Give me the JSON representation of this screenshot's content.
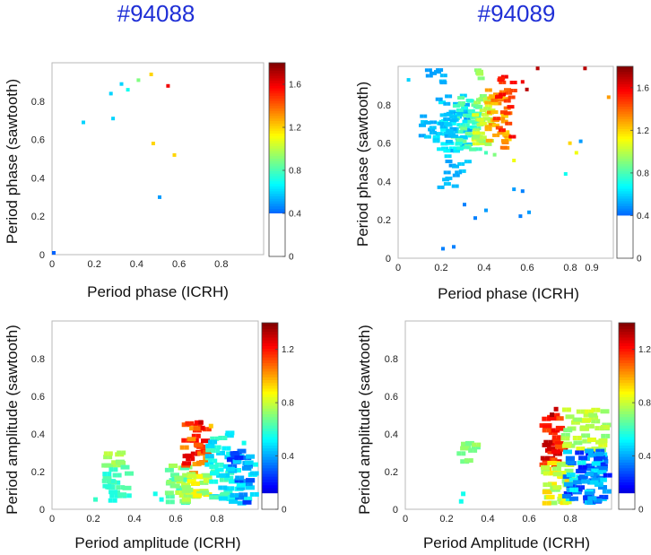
{
  "shots": [
    {
      "label": "#94088"
    },
    {
      "label": "#94089"
    }
  ],
  "chart_data": [
    {
      "type": "heatmap",
      "shot": "#94088",
      "xlabel": "Period phase (ICRH)",
      "ylabel": "Period phase (sawtooth)",
      "xlim": [
        0,
        1
      ],
      "ylim": [
        0,
        1
      ],
      "xticks": [
        "0",
        "0.2",
        "0.4",
        "0.6",
        "0.8"
      ],
      "yticks": [
        "0",
        "0.2",
        "0.4",
        "0.6",
        "0.8"
      ],
      "colorbar": {
        "range": [
          0,
          1.8
        ],
        "white_below": 0.4,
        "ticks": [
          "0",
          "0.4",
          "0.8",
          "1.2",
          "1.6"
        ]
      },
      "points": [
        [
          0.0,
          0.0,
          0.4
        ],
        [
          0.27,
          0.83,
          0.6
        ],
        [
          0.32,
          0.88,
          0.6
        ],
        [
          0.35,
          0.85,
          0.7
        ],
        [
          0.4,
          0.9,
          0.9
        ],
        [
          0.46,
          0.93,
          1.2
        ],
        [
          0.54,
          0.87,
          1.6
        ],
        [
          0.14,
          0.68,
          0.6
        ],
        [
          0.28,
          0.7,
          0.6
        ],
        [
          0.47,
          0.57,
          1.2
        ],
        [
          0.57,
          0.51,
          1.2
        ],
        [
          0.5,
          0.29,
          0.5
        ]
      ]
    },
    {
      "type": "heatmap",
      "shot": "#94089",
      "xlabel": "Period phase (ICRH)",
      "ylabel": "Period phase (sawtooth)",
      "xlim": [
        0,
        1
      ],
      "ylim": [
        0,
        1
      ],
      "xticks": [
        "0",
        "0.2",
        "0.4",
        "0.6",
        "0.8",
        "0.9"
      ],
      "yticks": [
        "0",
        "0.2",
        "0.4",
        "0.6",
        "0.8"
      ],
      "colorbar": {
        "range": [
          0,
          1.8
        ],
        "white_below": 0.4,
        "ticks": [
          "0",
          "0.4",
          "0.8",
          "1.2",
          "1.6"
        ]
      },
      "clusters": [
        {
          "x0": 0.16,
          "x1": 0.32,
          "y0": 0.52,
          "y1": 0.84,
          "c0": 0.5,
          "c1": 0.7,
          "n": 60
        },
        {
          "x0": 0.24,
          "x1": 0.36,
          "y0": 0.55,
          "y1": 0.84,
          "c0": 0.7,
          "c1": 0.9,
          "n": 45
        },
        {
          "x0": 0.34,
          "x1": 0.42,
          "y0": 0.58,
          "y1": 0.86,
          "c0": 0.9,
          "c1": 1.1,
          "n": 40
        },
        {
          "x0": 0.4,
          "x1": 0.5,
          "y0": 0.56,
          "y1": 0.88,
          "c0": 1.2,
          "c1": 1.4,
          "n": 40
        },
        {
          "x0": 0.44,
          "x1": 0.52,
          "y0": 0.62,
          "y1": 0.94,
          "c0": 1.4,
          "c1": 1.6,
          "n": 20
        },
        {
          "x0": 0.08,
          "x1": 0.26,
          "y0": 0.62,
          "y1": 0.74,
          "c0": 0.5,
          "c1": 0.6,
          "n": 25
        },
        {
          "x0": 0.18,
          "x1": 0.32,
          "y0": 0.36,
          "y1": 0.52,
          "c0": 0.5,
          "c1": 0.6,
          "n": 14
        },
        {
          "x0": 0.12,
          "x1": 0.2,
          "y0": 0.9,
          "y1": 0.98,
          "c0": 0.5,
          "c1": 0.6,
          "n": 8
        },
        {
          "x0": 0.34,
          "x1": 0.38,
          "y0": 0.92,
          "y1": 0.98,
          "c0": 0.9,
          "c1": 1.0,
          "n": 5
        }
      ],
      "points": [
        [
          0.04,
          0.92,
          0.6
        ],
        [
          0.4,
          0.24,
          0.5
        ],
        [
          0.35,
          0.2,
          0.45
        ],
        [
          0.56,
          0.21,
          0.45
        ],
        [
          0.53,
          0.35,
          0.5
        ],
        [
          0.25,
          0.05,
          0.45
        ],
        [
          0.2,
          0.04,
          0.45
        ],
        [
          0.3,
          0.27,
          0.45
        ],
        [
          0.6,
          0.23,
          0.5
        ],
        [
          0.57,
          0.34,
          0.45
        ],
        [
          0.64,
          0.98,
          1.7
        ],
        [
          0.86,
          0.98,
          1.7
        ],
        [
          0.59,
          0.87,
          1.7
        ],
        [
          0.57,
          0.91,
          1.6
        ],
        [
          0.97,
          0.83,
          1.3
        ],
        [
          0.82,
          0.54,
          1.1
        ],
        [
          0.79,
          0.59,
          1.2
        ],
        [
          0.77,
          0.43,
          0.7
        ],
        [
          0.53,
          0.5,
          1.1
        ],
        [
          0.4,
          0.54,
          0.8
        ],
        [
          0.44,
          0.53,
          0.9
        ],
        [
          0.84,
          0.6,
          0.5
        ]
      ]
    },
    {
      "type": "heatmap",
      "shot": "#94088",
      "xlabel": "Period amplitude (ICRH)",
      "ylabel": "Period amplitude (sawtooth)",
      "xlim": [
        0,
        1
      ],
      "ylim": [
        0,
        1
      ],
      "xticks": [
        "0",
        "0.2",
        "0.4",
        "0.6",
        "0.8"
      ],
      "yticks": [
        "0",
        "0.2",
        "0.4",
        "0.6",
        "0.8"
      ],
      "colorbar": {
        "range": [
          0,
          1.4
        ],
        "white_below": 0.12,
        "ticks": [
          "0",
          "0.4",
          "0.8",
          "1.2"
        ]
      },
      "clusters": [
        {
          "x0": 0.24,
          "x1": 0.34,
          "y0": 0.22,
          "y1": 0.3,
          "c0": 0.7,
          "c1": 0.8,
          "n": 10
        },
        {
          "x0": 0.24,
          "x1": 0.36,
          "y0": 0.02,
          "y1": 0.22,
          "c0": 0.55,
          "c1": 0.65,
          "n": 22
        },
        {
          "x0": 0.54,
          "x1": 0.64,
          "y0": 0.02,
          "y1": 0.22,
          "c0": 0.6,
          "c1": 0.8,
          "n": 30
        },
        {
          "x0": 0.62,
          "x1": 0.74,
          "y0": 0.16,
          "y1": 0.46,
          "c0": 1.0,
          "c1": 1.3,
          "n": 36
        },
        {
          "x0": 0.62,
          "x1": 0.74,
          "y0": 0.02,
          "y1": 0.18,
          "c0": 0.7,
          "c1": 0.9,
          "n": 30
        },
        {
          "x0": 0.74,
          "x1": 0.86,
          "y0": 0.04,
          "y1": 0.4,
          "c0": 0.45,
          "c1": 0.65,
          "n": 44
        },
        {
          "x0": 0.84,
          "x1": 0.96,
          "y0": 0.02,
          "y1": 0.3,
          "c0": 0.2,
          "c1": 0.55,
          "n": 44
        }
      ],
      "points": [
        [
          0.71,
          0.45,
          1.3
        ],
        [
          0.72,
          0.42,
          1.25
        ],
        [
          0.76,
          0.43,
          0.95
        ],
        [
          0.92,
          0.34,
          0.55
        ],
        [
          0.52,
          0.04,
          0.55
        ],
        [
          0.49,
          0.07,
          0.55
        ],
        [
          0.2,
          0.04,
          0.6
        ]
      ]
    },
    {
      "type": "heatmap",
      "shot": "#94089",
      "xlabel": "Period Amplitude (ICRH)",
      "ylabel": "Period amplitude (sawtooth)",
      "xlim": [
        0,
        1
      ],
      "ylim": [
        0,
        1
      ],
      "xticks": [
        "0",
        "0.2",
        "0.4",
        "0.6",
        "0.8"
      ],
      "yticks": [
        "0",
        "0.2",
        "0.4",
        "0.6",
        "0.8"
      ],
      "colorbar": {
        "range": [
          0,
          1.4
        ],
        "white_below": 0.12,
        "ticks": [
          "0",
          "0.4",
          "0.8",
          "1.2"
        ]
      },
      "clusters": [
        {
          "x0": 0.24,
          "x1": 0.34,
          "y0": 0.24,
          "y1": 0.34,
          "c0": 0.65,
          "c1": 0.75,
          "n": 10
        },
        {
          "x0": 0.65,
          "x1": 0.75,
          "y0": 0.22,
          "y1": 0.5,
          "c0": 1.1,
          "c1": 1.35,
          "n": 40
        },
        {
          "x0": 0.65,
          "x1": 0.78,
          "y0": 0.02,
          "y1": 0.24,
          "c0": 0.7,
          "c1": 0.95,
          "n": 44
        },
        {
          "x0": 0.75,
          "x1": 0.96,
          "y0": 0.3,
          "y1": 0.52,
          "c0": 0.7,
          "c1": 0.85,
          "n": 44
        },
        {
          "x0": 0.76,
          "x1": 0.96,
          "y0": 0.02,
          "y1": 0.3,
          "c0": 0.2,
          "c1": 0.55,
          "n": 90
        }
      ],
      "points": [
        [
          0.7,
          0.49,
          1.35
        ],
        [
          0.72,
          0.52,
          1.3
        ],
        [
          0.26,
          0.03,
          0.55
        ],
        [
          0.27,
          0.07,
          0.55
        ]
      ]
    }
  ]
}
